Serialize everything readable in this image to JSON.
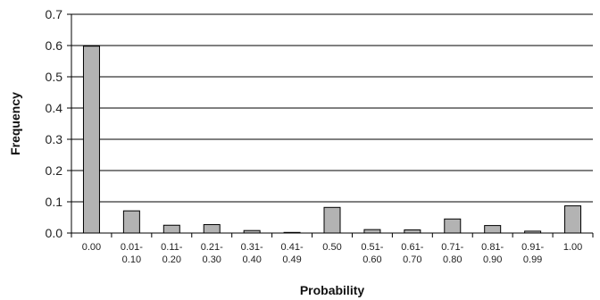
{
  "chart_data": {
    "type": "bar",
    "title": "",
    "xlabel": "Probability",
    "ylabel": "Frequency",
    "ylim": [
      0,
      0.7
    ],
    "yticks": [
      "0.0",
      "0.1",
      "0.2",
      "0.3",
      "0.4",
      "0.5",
      "0.6",
      "0.7"
    ],
    "grid": "horizontal",
    "categories": [
      [
        "0.00"
      ],
      [
        "0.01-",
        "0.10"
      ],
      [
        "0.11-",
        "0.20"
      ],
      [
        "0.21-",
        "0.30"
      ],
      [
        "0.31-",
        "0.40"
      ],
      [
        "0.41-",
        "0.49"
      ],
      [
        "0.50"
      ],
      [
        "0.51-",
        "0.60"
      ],
      [
        "0.61-",
        "0.70"
      ],
      [
        "0.71-",
        "0.80"
      ],
      [
        "0.81-",
        "0.90"
      ],
      [
        "0.91-",
        "0.99"
      ],
      [
        "1.00"
      ]
    ],
    "values": [
      0.598,
      0.071,
      0.025,
      0.027,
      0.008,
      0.002,
      0.082,
      0.011,
      0.01,
      0.045,
      0.024,
      0.006,
      0.087
    ],
    "bar_color": "#b3b3b3",
    "bar_stroke": "#000000",
    "grid_color": "#000000"
  }
}
